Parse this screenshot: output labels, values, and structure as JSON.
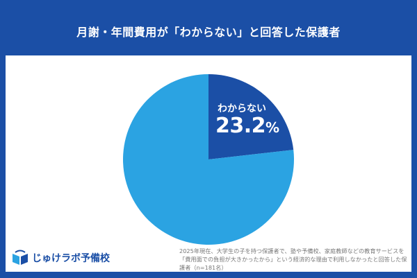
{
  "title": "月謝・年間費用が「わからない」と回答した保護者",
  "chart_data": {
    "type": "pie",
    "start": "top",
    "direction": "clockwise",
    "slices": [
      {
        "label": "わからない",
        "value": 23.2,
        "display_value": "23.2",
        "unit": "%",
        "color": "#1b4fa6"
      },
      {
        "label": "",
        "value": 76.8,
        "color": "#2ba3e2"
      }
    ]
  },
  "logo": {
    "text": "じゅけラボ予備校"
  },
  "footnote": "2025年現在、大学生の子を持つ保護者で、塾や予備校、家庭教師などの教育サービスを「費用面での負担が大きかったから」という経済的な理由で利用しなかったと回答した保護者（n=181名）"
}
